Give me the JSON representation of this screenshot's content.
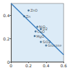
{
  "chart_data": {
    "type": "scatter",
    "series": [
      {
        "type": "scatter",
        "color": "#2f5f8a",
        "marker": "circle",
        "x": [
          0.2,
          0.15,
          0.3,
          0.34,
          0.28,
          0.27,
          0.34,
          0.4
        ],
        "values": [
          0.44,
          0.39,
          0.3,
          0.28,
          0.26,
          0.22,
          0.17,
          0.14
        ],
        "labels": [
          "ZnO",
          "Zn",
          "NiO",
          "O2",
          "CuO",
          "MgO",
          "SiO2",
          "Glucose"
        ]
      },
      {
        "type": "line",
        "color": "#3b7fc0",
        "line_style": "solid",
        "x": [
          0,
          0.6
        ],
        "values": [
          0.5,
          0.06
        ]
      }
    ],
    "xlim": [
      0,
      0.6
    ],
    "xticks": [
      0,
      0.2,
      0.4,
      0.6
    ],
    "ylim": [
      0,
      0.5
    ],
    "yticks": [
      0,
      0.2,
      0.4
    ],
    "grid": false,
    "data_labels": true
  }
}
